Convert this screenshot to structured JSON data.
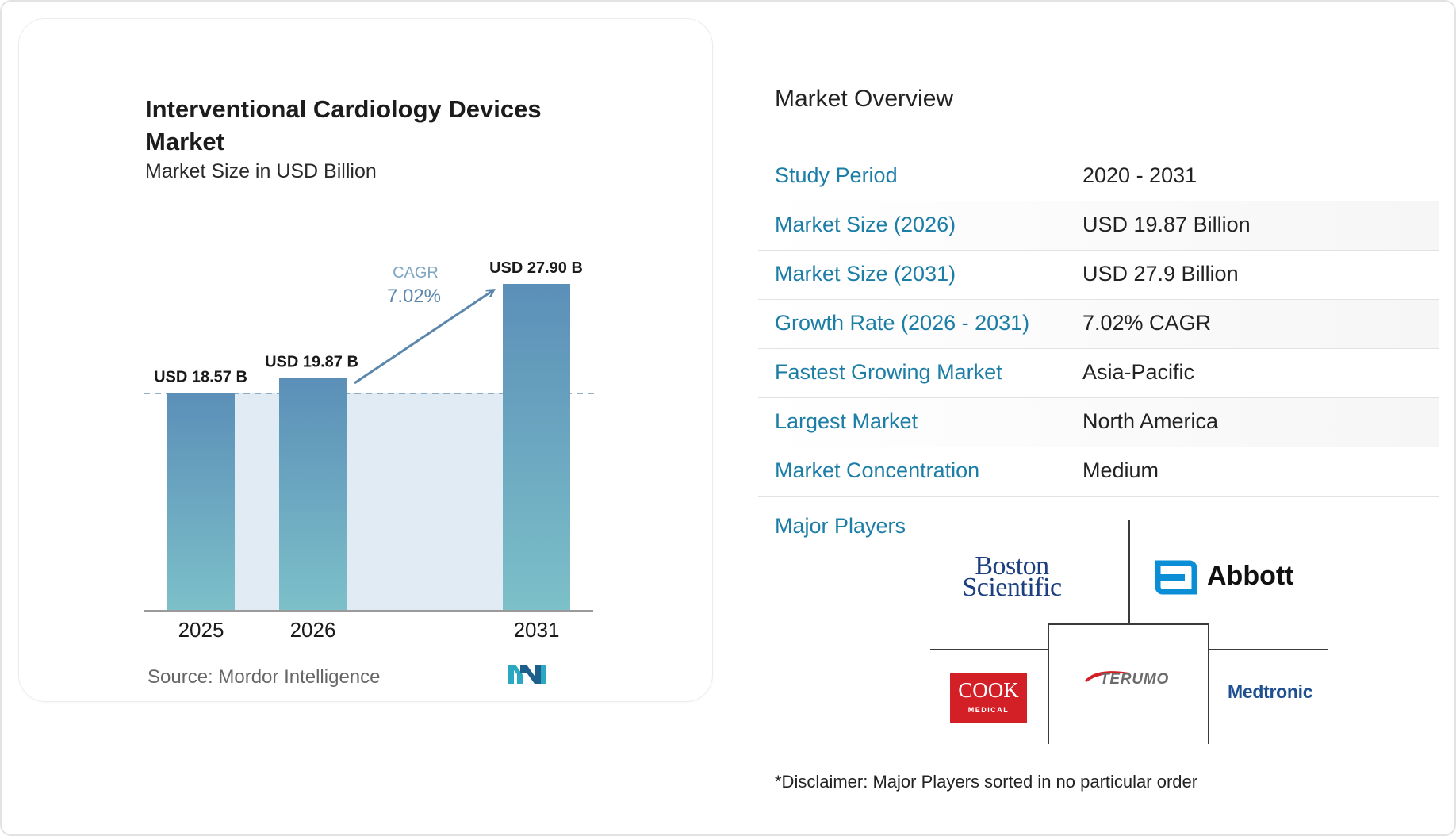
{
  "chart_data": {
    "type": "bar",
    "title": "Interventional Cardiology Devices Market",
    "subtitle": "Market Size in USD Billion",
    "categories": [
      "2025",
      "2026",
      "2031"
    ],
    "values": [
      18.57,
      19.87,
      27.9
    ],
    "data_labels": [
      "USD 18.57 B",
      "USD 19.87 B",
      "USD 27.90 B"
    ],
    "cagr_label": "CAGR",
    "cagr_value": "7.02%",
    "ylim": [
      0,
      27.9
    ],
    "grid": false,
    "colors": {
      "bar_top": "#5b8fb8",
      "bar_bottom": "#7cc0c9",
      "band": "#e1ebf4",
      "accent": "#5b87ad"
    }
  },
  "source": "Source:  Mordor Intelligence",
  "overview": {
    "title": "Market Overview",
    "rows": [
      {
        "label": "Study Period",
        "value": "2020 - 2031"
      },
      {
        "label": "Market Size (2026)",
        "value": "USD 19.87 Billion"
      },
      {
        "label": "Market Size (2031)",
        "value": "USD 27.9 Billion"
      },
      {
        "label": "Growth Rate (2026 - 2031)",
        "value": "7.02% CAGR"
      },
      {
        "label": "Fastest Growing Market",
        "value": "Asia-Pacific"
      },
      {
        "label": "Largest Market",
        "value": "North America"
      },
      {
        "label": "Market Concentration",
        "value": "Medium"
      }
    ]
  },
  "players": {
    "label": "Major Players",
    "logos": {
      "boston_line1": "Boston",
      "boston_line2": "Scientific",
      "abbott": "Abbott",
      "cook": "COOK",
      "cook_sub": "MEDICAL",
      "terumo": "TERUMO",
      "medtronic": "Medtronic"
    }
  },
  "disclaimer": "*Disclaimer: Major Players sorted in no particular order",
  "colors": {
    "label_blue": "#1c7ea6"
  }
}
